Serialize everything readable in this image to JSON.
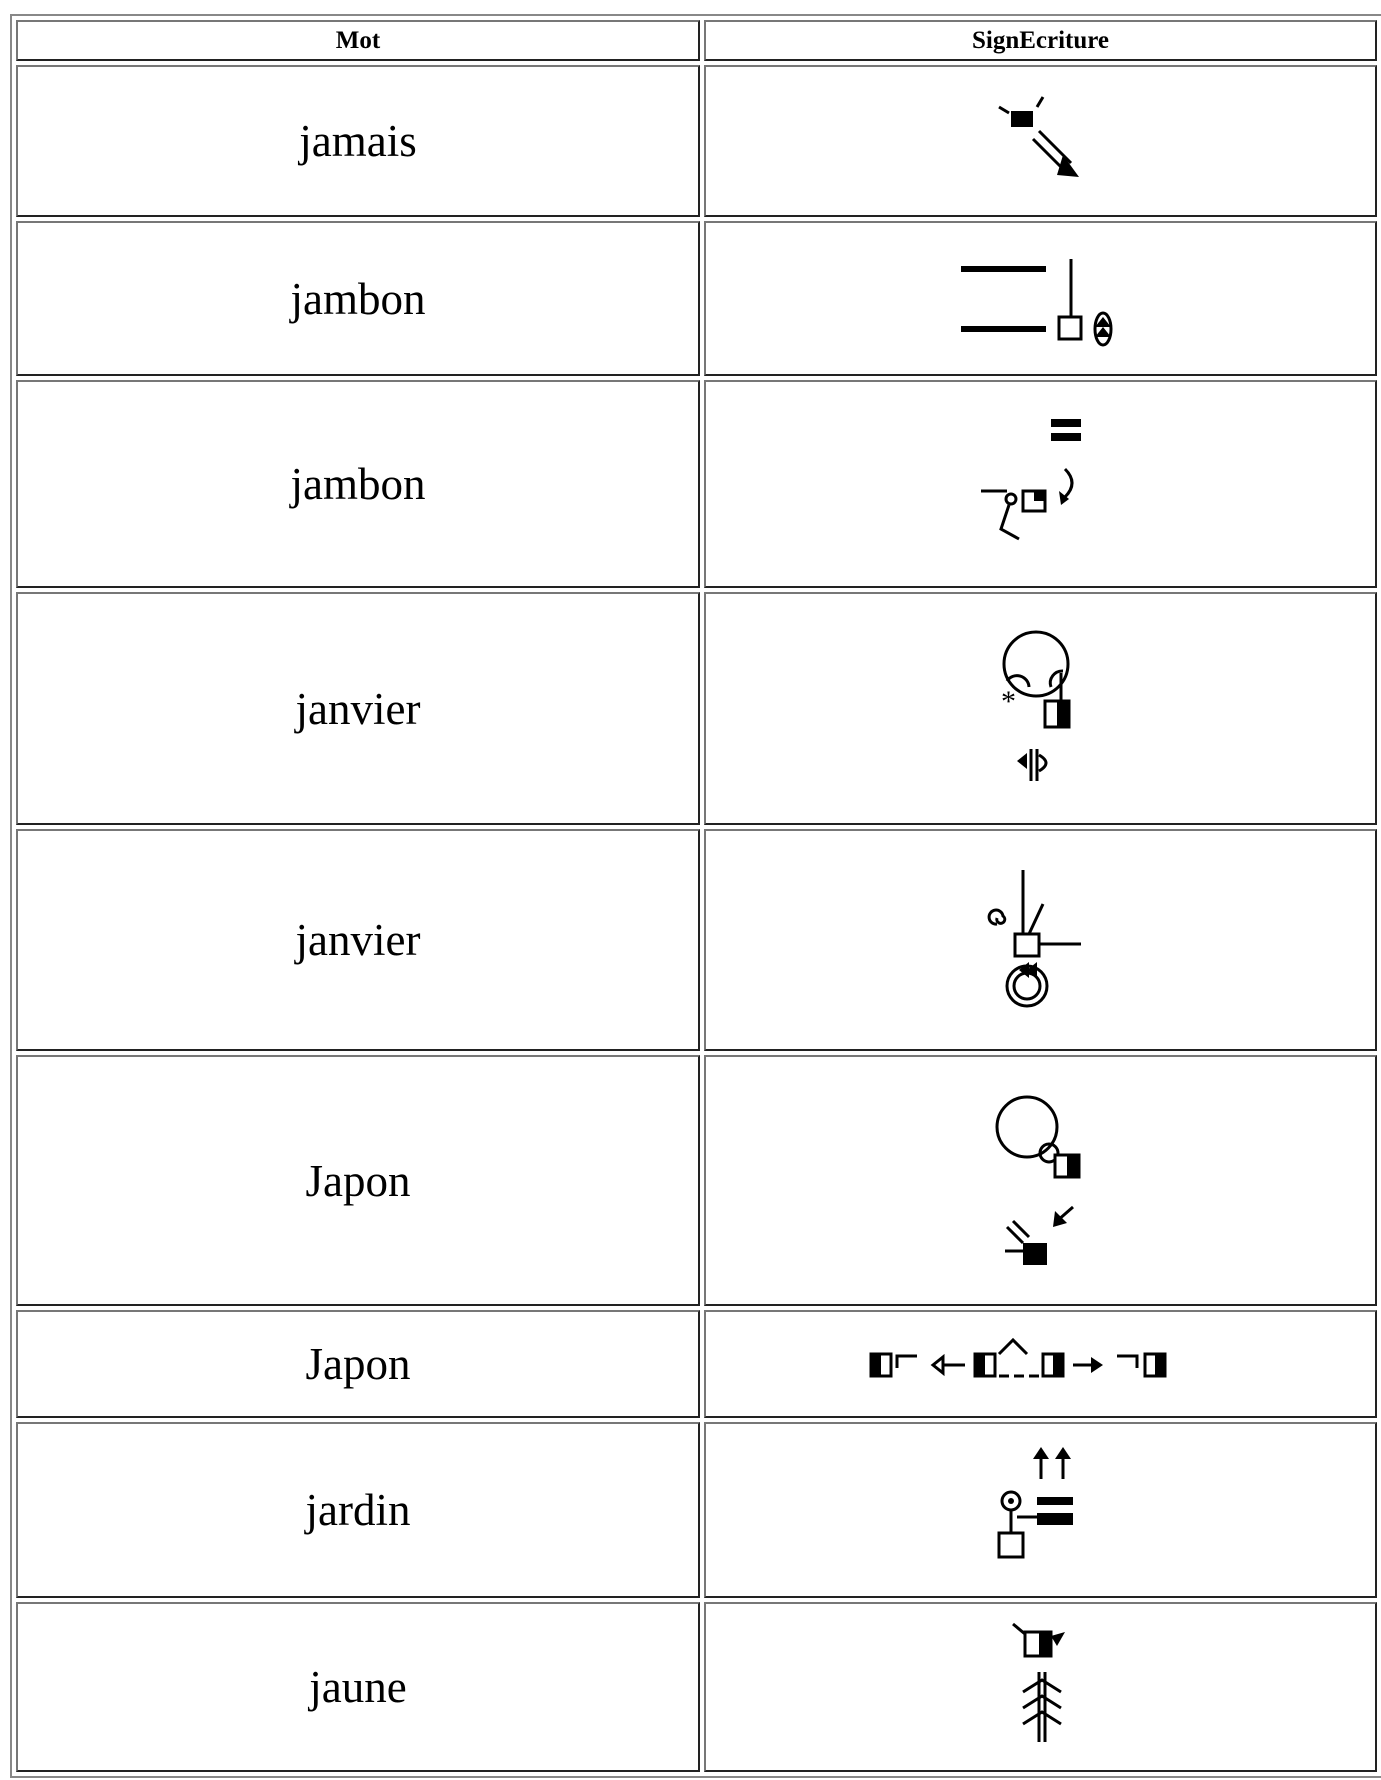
{
  "table": {
    "header": [
      "Mot",
      "SignEcriture"
    ],
    "rows": [
      [
        "jamais"
      ],
      [
        "jambon"
      ],
      [
        "jambon"
      ],
      [
        "janvier"
      ],
      [
        "janvier"
      ],
      [
        "Japon"
      ],
      [
        "Japon"
      ],
      [
        "jardin"
      ],
      [
        "jaune"
      ]
    ]
  }
}
